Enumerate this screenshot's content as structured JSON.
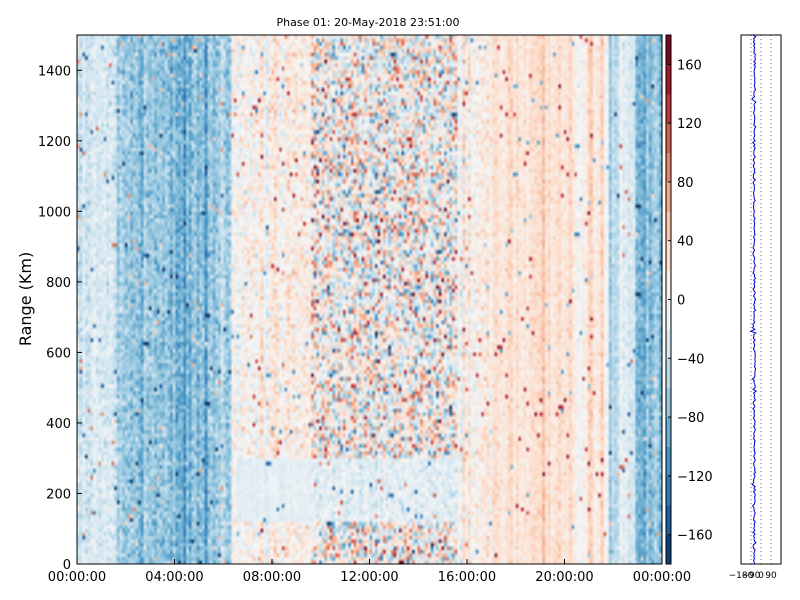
{
  "chart_data": [
    {
      "type": "heatmap",
      "title": "Phase 01: 20-May-2018 23:51:00",
      "ylabel": "Range (Km)",
      "xlabel": "",
      "x_ticks": [
        "00:00:00",
        "04:00:00",
        "08:00:00",
        "12:00:00",
        "16:00:00",
        "20:00:00",
        "00:00:00"
      ],
      "x_range_hours": [
        0,
        24
      ],
      "y_ticks": [
        0,
        200,
        400,
        600,
        800,
        1000,
        1200,
        1400
      ],
      "ylim": [
        0,
        1500
      ],
      "colormap": "RdBu_r",
      "colorbar_ticks": [
        -160,
        -120,
        -80,
        -40,
        0,
        40,
        80,
        120,
        160
      ],
      "clim": [
        -180,
        180
      ],
      "grid": false
    },
    {
      "type": "line",
      "x_ticks": [
        -180,
        -90,
        0,
        90
      ],
      "xlim": [
        -180,
        180
      ],
      "ylim": [
        0,
        1500
      ],
      "line_color": "#0000cc",
      "grid": "vertical dotted"
    }
  ]
}
